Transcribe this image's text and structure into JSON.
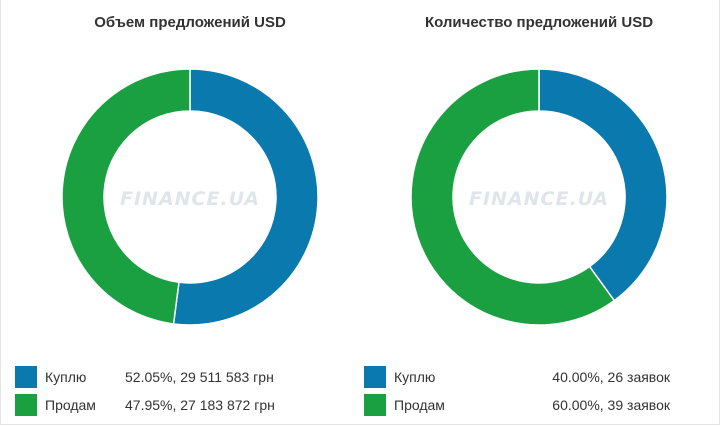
{
  "colors": {
    "blue": "#0a79ad",
    "green": "#1aa040"
  },
  "chart_data": [
    {
      "type": "pie",
      "title": "Объем предложений USD",
      "watermark": "FINANCE.UA",
      "slices": [
        {
          "label": "Куплю",
          "percent": 52.05,
          "display": "52.05%, 29 511 583 грн",
          "color": "#0a79ad"
        },
        {
          "label": "Продам",
          "percent": 47.95,
          "display": "47.95%, 27 183 872 грн",
          "color": "#1aa040"
        }
      ]
    },
    {
      "type": "pie",
      "title": "Количество предложений USD",
      "watermark": "FINANCE.UA",
      "slices": [
        {
          "label": "Куплю",
          "percent": 40.0,
          "display": "40.00%, 26 заявок",
          "color": "#0a79ad"
        },
        {
          "label": "Продам",
          "percent": 60.0,
          "display": "60.00%, 39 заявок",
          "color": "#1aa040"
        }
      ]
    }
  ]
}
